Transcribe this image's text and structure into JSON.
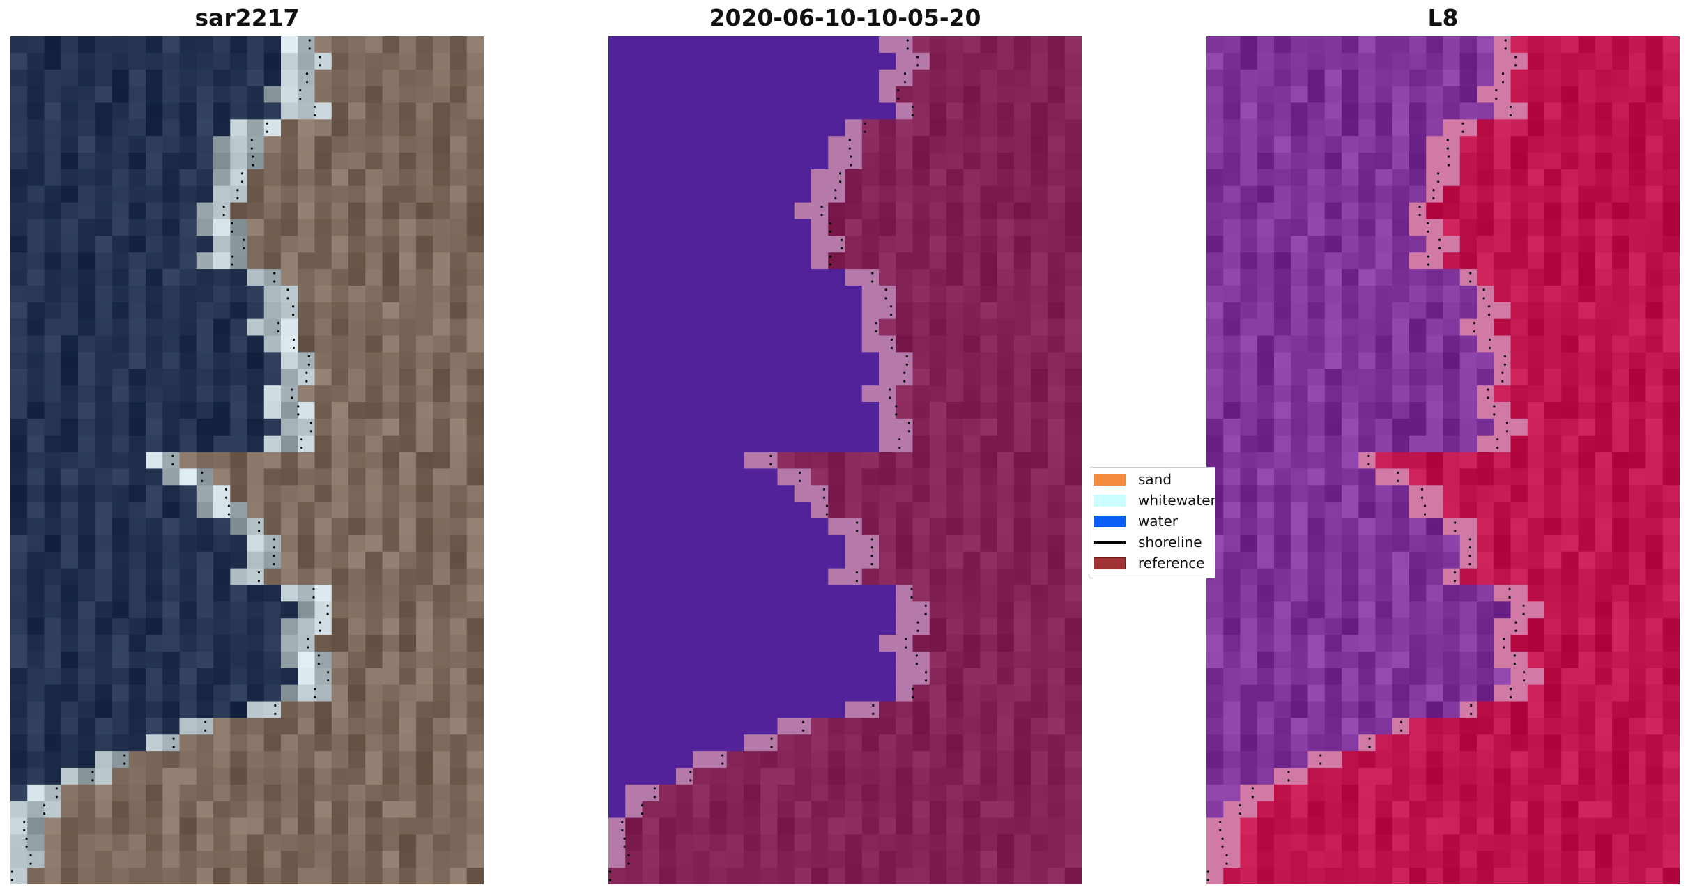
{
  "panels": [
    {
      "title": "sar2217"
    },
    {
      "title": "2020-06-10-10-05-20"
    },
    {
      "title": "L8"
    }
  ],
  "legend": {
    "items": [
      {
        "label": "sand",
        "color": "#f28c3c",
        "kind": "patch"
      },
      {
        "label": "whitewater",
        "color": "#ccffff",
        "kind": "patch"
      },
      {
        "label": "water",
        "color": "#0b5cf5",
        "kind": "patch"
      },
      {
        "label": "shoreline",
        "color": "#000000",
        "kind": "line"
      },
      {
        "label": "reference",
        "color": "#a13234",
        "kind": "patch"
      }
    ]
  },
  "colors": {
    "rgb_water": "#2b3b58",
    "rgb_sand": "#8a7668",
    "rgb_whitewater": "#c9d6dc",
    "class_water": "#52229a",
    "class_land": "#8a2a5c",
    "class_white": "#b67aaa",
    "l8_water": "#8a3fa6",
    "l8_land": "#c81c55",
    "l8_edge": "#d27aa6"
  }
}
